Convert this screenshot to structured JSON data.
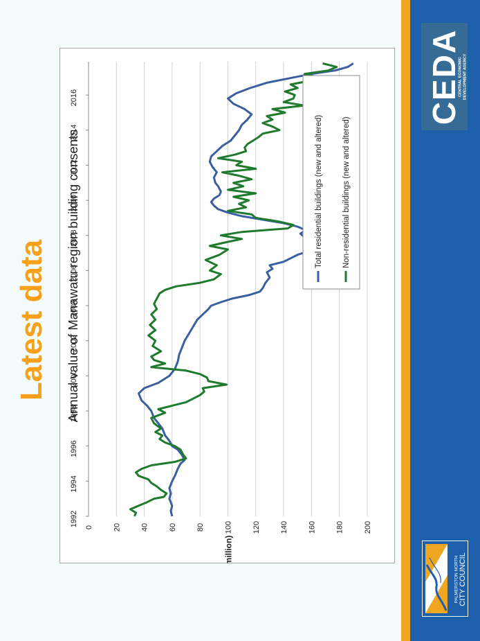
{
  "slide": {
    "heading": "Latest data"
  },
  "brand": {
    "ceda_logo_text": "CEDA",
    "ceda_subtitle": "CENTRAL ECONOMIC DEVELOPMENT AGENCY",
    "council_line1": "PALMERSTON NORTH",
    "council_line2": "CITY COUNCIL",
    "colors": {
      "accent_gold": "#f0a623",
      "sidebar_blue": "#1d5faa",
      "ceda_box": "#356b95",
      "heading_orange": "#f7a11a"
    }
  },
  "chart_data": {
    "type": "line",
    "title": "Annual value of Manawatu region building consents",
    "ylabel": "($ million)",
    "xlabel": "",
    "ylim": [
      0,
      200
    ],
    "yticks": [
      0,
      20,
      40,
      60,
      80,
      100,
      120,
      140,
      160,
      180,
      200
    ],
    "xlim": [
      1992,
      2017.9
    ],
    "xticks": [
      1992,
      1994,
      1996,
      1998,
      2000,
      2002,
      2004,
      2006,
      2008,
      2010,
      2012,
      2014,
      2016
    ],
    "grid": true,
    "legend_position": "right",
    "orientation": "rotated 90 degrees counter-clockwise on the slide",
    "series": [
      {
        "name": "Total residential buildings (new and altered)",
        "color": "#3a5fa0",
        "points": [
          [
            1992.0,
            60
          ],
          [
            1992.3,
            59
          ],
          [
            1992.6,
            60
          ],
          [
            1993.0,
            58
          ],
          [
            1993.3,
            59
          ],
          [
            1993.6,
            58
          ],
          [
            1994.0,
            60
          ],
          [
            1994.3,
            62
          ],
          [
            1994.7,
            64
          ],
          [
            1995.0,
            66
          ],
          [
            1995.2,
            69
          ],
          [
            1995.5,
            67
          ],
          [
            1995.8,
            64
          ],
          [
            1996.0,
            60
          ],
          [
            1996.3,
            58
          ],
          [
            1996.6,
            55
          ],
          [
            1997.0,
            53
          ],
          [
            1997.3,
            50
          ],
          [
            1997.6,
            47
          ],
          [
            1998.0,
            45
          ],
          [
            1998.3,
            42
          ],
          [
            1998.6,
            38
          ],
          [
            1999.0,
            36
          ],
          [
            1999.3,
            40
          ],
          [
            1999.6,
            50
          ],
          [
            2000.0,
            58
          ],
          [
            2000.4,
            62
          ],
          [
            2000.8,
            64
          ],
          [
            2001.2,
            65
          ],
          [
            2001.6,
            67
          ],
          [
            2002.0,
            69
          ],
          [
            2002.4,
            72
          ],
          [
            2002.8,
            75
          ],
          [
            2003.2,
            78
          ],
          [
            2003.5,
            82
          ],
          [
            2003.8,
            86
          ],
          [
            2004.0,
            88
          ],
          [
            2004.2,
            95
          ],
          [
            2004.4,
            103
          ],
          [
            2004.6,
            115
          ],
          [
            2004.8,
            123
          ],
          [
            2005.0,
            125
          ],
          [
            2005.3,
            127
          ],
          [
            2005.6,
            130
          ],
          [
            2005.9,
            128
          ],
          [
            2006.1,
            132
          ],
          [
            2006.3,
            130
          ],
          [
            2006.5,
            140
          ],
          [
            2006.7,
            145
          ],
          [
            2006.9,
            150
          ],
          [
            2007.1,
            158
          ],
          [
            2007.3,
            166
          ],
          [
            2007.5,
            162
          ],
          [
            2007.7,
            158
          ],
          [
            2007.9,
            155
          ],
          [
            2008.1,
            152
          ],
          [
            2008.3,
            156
          ],
          [
            2008.5,
            150
          ],
          [
            2008.7,
            140
          ],
          [
            2008.9,
            125
          ],
          [
            2009.1,
            110
          ],
          [
            2009.3,
            100
          ],
          [
            2009.5,
            93
          ],
          [
            2009.7,
            90
          ],
          [
            2009.9,
            88
          ],
          [
            2010.1,
            90
          ],
          [
            2010.3,
            94
          ],
          [
            2010.5,
            95
          ],
          [
            2010.8,
            93
          ],
          [
            2011.0,
            91
          ],
          [
            2011.3,
            90
          ],
          [
            2011.6,
            92
          ],
          [
            2011.9,
            89
          ],
          [
            2012.2,
            87
          ],
          [
            2012.5,
            88
          ],
          [
            2012.8,
            92
          ],
          [
            2013.1,
            96
          ],
          [
            2013.4,
            102
          ],
          [
            2013.7,
            105
          ],
          [
            2014.0,
            108
          ],
          [
            2014.3,
            110
          ],
          [
            2014.6,
            114
          ],
          [
            2014.9,
            117
          ],
          [
            2015.2,
            112
          ],
          [
            2015.5,
            104
          ],
          [
            2015.8,
            100
          ],
          [
            2016.1,
            106
          ],
          [
            2016.4,
            116
          ],
          [
            2016.7,
            128
          ],
          [
            2017.0,
            147
          ],
          [
            2017.2,
            160
          ],
          [
            2017.4,
            177
          ],
          [
            2017.6,
            186
          ],
          [
            2017.8,
            190
          ]
        ]
      },
      {
        "name": "Non-residential buildings (new and altered)",
        "color": "#1f7a2e",
        "points": [
          [
            1992.0,
            33
          ],
          [
            1992.2,
            34
          ],
          [
            1992.4,
            30
          ],
          [
            1992.6,
            36
          ],
          [
            1992.8,
            42
          ],
          [
            1993.0,
            47
          ],
          [
            1993.1,
            54
          ],
          [
            1993.3,
            56
          ],
          [
            1993.5,
            52
          ],
          [
            1993.7,
            49
          ],
          [
            1993.9,
            45
          ],
          [
            1994.1,
            43
          ],
          [
            1994.3,
            36
          ],
          [
            1994.5,
            34
          ],
          [
            1994.7,
            38
          ],
          [
            1994.9,
            45
          ],
          [
            1995.1,
            62
          ],
          [
            1995.3,
            70
          ],
          [
            1995.5,
            68
          ],
          [
            1995.8,
            66
          ],
          [
            1996.0,
            62
          ],
          [
            1996.2,
            55
          ],
          [
            1996.4,
            51
          ],
          [
            1996.6,
            53
          ],
          [
            1996.8,
            48
          ],
          [
            1997.0,
            52
          ],
          [
            1997.3,
            47
          ],
          [
            1997.6,
            45
          ],
          [
            1997.9,
            55
          ],
          [
            1998.1,
            50
          ],
          [
            1998.3,
            60
          ],
          [
            1998.5,
            70
          ],
          [
            1998.7,
            75
          ],
          [
            1998.9,
            80
          ],
          [
            1999.1,
            83
          ],
          [
            1999.3,
            82
          ],
          [
            1999.5,
            99
          ],
          [
            1999.7,
            86
          ],
          [
            1999.9,
            85
          ],
          [
            2000.1,
            80
          ],
          [
            2000.3,
            70
          ],
          [
            2000.5,
            45
          ],
          [
            2000.7,
            55
          ],
          [
            2000.9,
            47
          ],
          [
            2001.1,
            45
          ],
          [
            2001.4,
            52
          ],
          [
            2001.7,
            46
          ],
          [
            2002.0,
            48
          ],
          [
            2002.3,
            43
          ],
          [
            2002.6,
            48
          ],
          [
            2002.9,
            44
          ],
          [
            2003.2,
            48
          ],
          [
            2003.5,
            45
          ],
          [
            2003.8,
            49
          ],
          [
            2004.1,
            47
          ],
          [
            2004.4,
            49
          ],
          [
            2004.7,
            51
          ],
          [
            2004.9,
            55
          ],
          [
            2005.1,
            63
          ],
          [
            2005.3,
            80
          ],
          [
            2005.5,
            90
          ],
          [
            2005.8,
            95
          ],
          [
            2006.0,
            87
          ],
          [
            2006.3,
            92
          ],
          [
            2006.6,
            84
          ],
          [
            2006.9,
            94
          ],
          [
            2007.2,
            100
          ],
          [
            2007.4,
            87
          ],
          [
            2007.6,
            98
          ],
          [
            2007.8,
            110
          ],
          [
            2008.0,
            95
          ],
          [
            2008.2,
            110
          ],
          [
            2008.4,
            143
          ],
          [
            2008.6,
            147
          ],
          [
            2008.8,
            136
          ],
          [
            2009.0,
            120
          ],
          [
            2009.2,
            117
          ],
          [
            2009.4,
            100
          ],
          [
            2009.6,
            113
          ],
          [
            2009.8,
            108
          ],
          [
            2010.0,
            115
          ],
          [
            2010.2,
            104
          ],
          [
            2010.4,
            120
          ],
          [
            2010.6,
            100
          ],
          [
            2010.8,
            111
          ],
          [
            2011.0,
            104
          ],
          [
            2011.2,
            117
          ],
          [
            2011.4,
            108
          ],
          [
            2011.6,
            96
          ],
          [
            2011.8,
            120
          ],
          [
            2012.0,
            106
          ],
          [
            2012.2,
            110
          ],
          [
            2012.4,
            93
          ],
          [
            2012.6,
            105
          ],
          [
            2012.8,
            113
          ],
          [
            2013.0,
            112
          ],
          [
            2013.2,
            114
          ],
          [
            2013.4,
            118
          ],
          [
            2013.6,
            122
          ],
          [
            2013.8,
            125
          ],
          [
            2014.0,
            137
          ],
          [
            2014.2,
            132
          ],
          [
            2014.4,
            125
          ],
          [
            2014.6,
            132
          ],
          [
            2014.8,
            128
          ],
          [
            2015.0,
            141
          ],
          [
            2015.2,
            132
          ],
          [
            2015.4,
            155
          ],
          [
            2015.6,
            140
          ],
          [
            2015.8,
            147
          ],
          [
            2016.0,
            148
          ],
          [
            2016.2,
            141
          ],
          [
            2016.4,
            150
          ],
          [
            2016.6,
            145
          ],
          [
            2016.8,
            158
          ],
          [
            2017.0,
            165
          ],
          [
            2017.2,
            155
          ],
          [
            2017.4,
            172
          ],
          [
            2017.6,
            178
          ],
          [
            2017.8,
            168
          ]
        ]
      }
    ]
  }
}
